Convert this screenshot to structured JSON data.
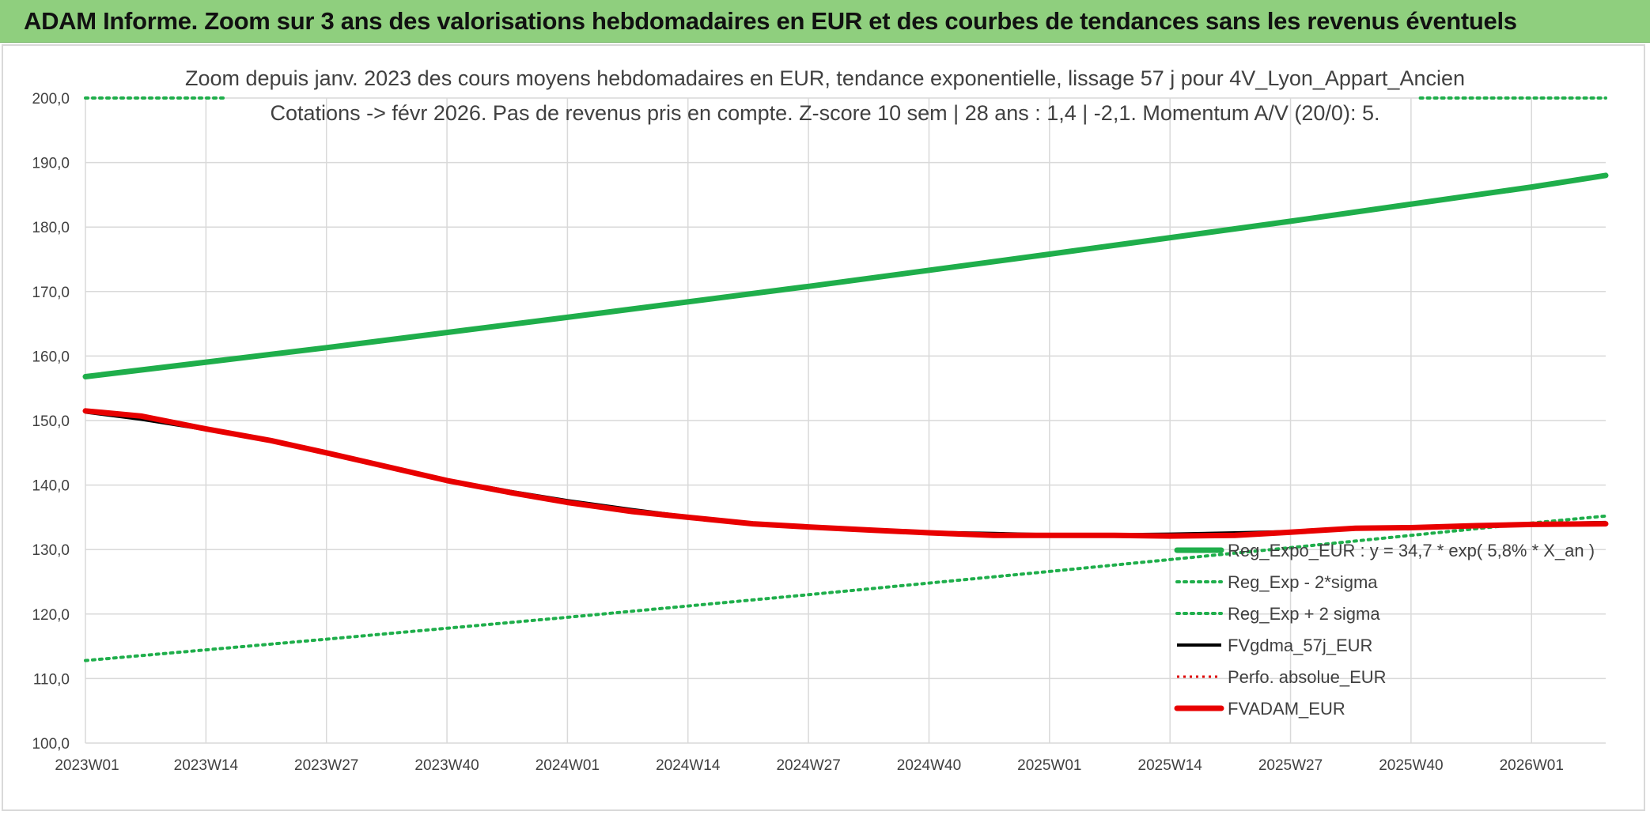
{
  "banner": {
    "title": "ADAM Informe. Zoom sur 3 ans des valorisations hebdomadaires en EUR et des courbes de tendances sans les revenus éventuels"
  },
  "chart_data": {
    "type": "line",
    "title_line1": "Zoom depuis janv. 2023 des cours moyens hebdomadaires en EUR, tendance exponentielle, lissage 57 j pour 4V_Lyon_Appart_Ancien",
    "title_line2": "Cotations -> févr 2026. Pas de revenus pris en compte. Z-score 10 sem | 28 ans : 1,4 | -2,1. Momentum A/V (20/0): 5.",
    "xlabel": "",
    "ylabel": "",
    "ylim": [
      100,
      200
    ],
    "y_ticks": [
      "100,0",
      "110,0",
      "120,0",
      "130,0",
      "140,0",
      "150,0",
      "160,0",
      "170,0",
      "180,0",
      "190,0",
      "200,0"
    ],
    "x_ticks": [
      "2023W01",
      "2023W14",
      "2023W27",
      "2023W40",
      "2024W01",
      "2024W14",
      "2024W27",
      "2024W40",
      "2025W01",
      "2025W14",
      "2025W27",
      "2025W40",
      "2026W01"
    ],
    "x_tick_index": [
      0,
      13,
      26,
      39,
      52,
      65,
      78,
      91,
      104,
      117,
      130,
      143,
      156
    ],
    "x_max_index": 164,
    "grid": true,
    "legend_position": "bottom-right",
    "colors": {
      "reg_expo": "#1fae4b",
      "sigma_band": "#1fae4b",
      "fvgdma": "#000000",
      "perfo": "#e00000",
      "fvadam": "#e80000",
      "grid": "#d9d9d9"
    },
    "series": [
      {
        "name": "Reg_Expo_EUR : y = 34,7 * exp( 5,8% *  X_an )",
        "key": "reg_expo",
        "style": "solid-thick",
        "x": [
          0,
          26,
          52,
          78,
          104,
          130,
          156,
          164
        ],
        "values": [
          156.8,
          161.3,
          166.0,
          170.8,
          175.8,
          180.9,
          186.2,
          188.0
        ]
      },
      {
        "name": "Reg_Exp - 2*sigma",
        "key": "sigma_band",
        "style": "dotted",
        "x": [
          0,
          26,
          52,
          78,
          104,
          130,
          156,
          164
        ],
        "values": [
          112.8,
          116.1,
          119.5,
          123.0,
          126.6,
          130.3,
          134.1,
          135.2
        ]
      },
      {
        "name": "Reg_Exp + 2 sigma",
        "key": "sigma_band",
        "style": "dotted",
        "x": [
          0,
          15,
          144,
          164
        ],
        "values": [
          200.0,
          200.0,
          200.0,
          200.0
        ],
        "x_segments": [
          [
            0,
            15
          ],
          [
            144,
            164
          ]
        ]
      },
      {
        "name": "FVgdma_57j_EUR",
        "key": "fvgdma",
        "style": "solid",
        "x": [
          0,
          6,
          13,
          20,
          26,
          33,
          39,
          46,
          52,
          59,
          65,
          72,
          78,
          85,
          91,
          98,
          104,
          111,
          117,
          124,
          130,
          137,
          143,
          150,
          156,
          164
        ],
        "values": [
          151.3,
          150.2,
          148.6,
          146.8,
          145.0,
          142.8,
          140.8,
          139.0,
          137.6,
          136.2,
          135.1,
          134.1,
          133.5,
          133.0,
          132.7,
          132.5,
          132.3,
          132.3,
          132.4,
          132.6,
          132.8,
          133.2,
          133.5,
          133.8,
          134.0,
          134.2
        ]
      },
      {
        "name": "Perfo. absolue_EUR",
        "key": "perfo",
        "style": "dotted-red",
        "x": [],
        "values": []
      },
      {
        "name": "FVADAM_EUR",
        "key": "fvadam",
        "style": "solid-thick",
        "x": [
          0,
          6,
          13,
          20,
          26,
          33,
          39,
          46,
          52,
          59,
          65,
          72,
          78,
          85,
          91,
          98,
          104,
          111,
          117,
          124,
          130,
          137,
          143,
          150,
          156,
          164
        ],
        "values": [
          151.5,
          150.7,
          148.7,
          146.9,
          145.0,
          142.7,
          140.7,
          138.8,
          137.3,
          135.9,
          135.0,
          134.0,
          133.5,
          133.0,
          132.6,
          132.2,
          132.2,
          132.2,
          132.1,
          132.2,
          132.7,
          133.3,
          133.4,
          133.7,
          133.9,
          134.0
        ]
      }
    ]
  }
}
